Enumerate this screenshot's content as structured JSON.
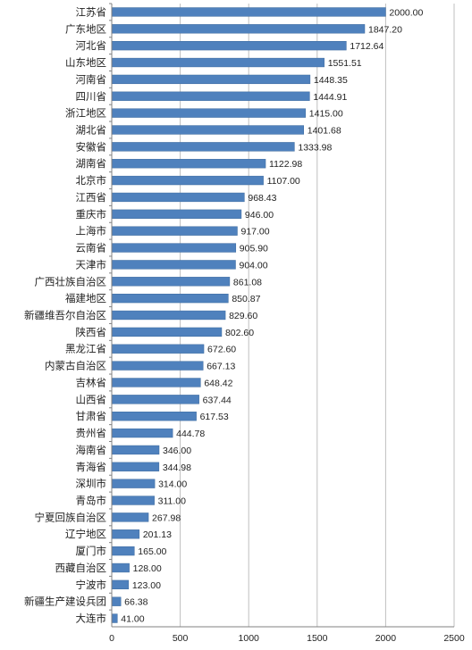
{
  "chart_data": {
    "type": "bar",
    "orientation": "horizontal",
    "categories": [
      "江苏省",
      "广东地区",
      "河北省",
      "山东地区",
      "河南省",
      "四川省",
      "浙江地区",
      "湖北省",
      "安徽省",
      "湖南省",
      "北京市",
      "江西省",
      "重庆市",
      "上海市",
      "云南省",
      "天津市",
      "广西壮族自治区",
      "福建地区",
      "新疆维吾尔自治区",
      "陕西省",
      "黑龙江省",
      "内蒙古自治区",
      "吉林省",
      "山西省",
      "甘肃省",
      "贵州省",
      "海南省",
      "青海省",
      "深圳市",
      "青岛市",
      "宁夏回族自治区",
      "辽宁地区",
      "厦门市",
      "西藏自治区",
      "宁波市",
      "新疆生产建设兵团",
      "大连市"
    ],
    "values": [
      2000.0,
      1847.2,
      1712.64,
      1551.51,
      1448.35,
      1444.91,
      1415.0,
      1401.68,
      1333.98,
      1122.98,
      1107.0,
      968.43,
      946.0,
      917.0,
      905.9,
      904.0,
      861.08,
      850.87,
      829.6,
      802.6,
      672.6,
      667.13,
      648.42,
      637.44,
      617.53,
      444.78,
      346.0,
      344.98,
      314.0,
      311.0,
      267.98,
      201.13,
      165.0,
      128.0,
      123.0,
      66.38,
      41.0
    ],
    "value_labels": [
      "2000.00",
      "1847.20",
      "1712.64",
      "1551.51",
      "1448.35",
      "1444.91",
      "1415.00",
      "1401.68",
      "1333.98",
      "1122.98",
      "1107.00",
      "968.43",
      "946.00",
      "917.00",
      "905.90",
      "904.00",
      "861.08",
      "850.87",
      "829.60",
      "802.60",
      "672.60",
      "667.13",
      "648.42",
      "637.44",
      "617.53",
      "444.78",
      "346.00",
      "344.98",
      "314.00",
      "311.00",
      "267.98",
      "201.13",
      "165.00",
      "128.00",
      "123.00",
      "66.38",
      "41.00"
    ],
    "xlim": [
      0,
      2500
    ],
    "x_ticks": [
      0,
      500,
      1000,
      1500,
      2000,
      2500
    ],
    "x_tick_labels": [
      "0",
      "500",
      "1000",
      "1500",
      "2000",
      "2500"
    ],
    "grid": "vertical",
    "legend": "none",
    "title": "",
    "xlabel": "",
    "ylabel": "",
    "colors": {
      "bar": "#4F81BD",
      "bar_edge": "#3D6A9E",
      "grid": "#BFBFBF",
      "axis": "#808080",
      "text": "#222222"
    }
  }
}
